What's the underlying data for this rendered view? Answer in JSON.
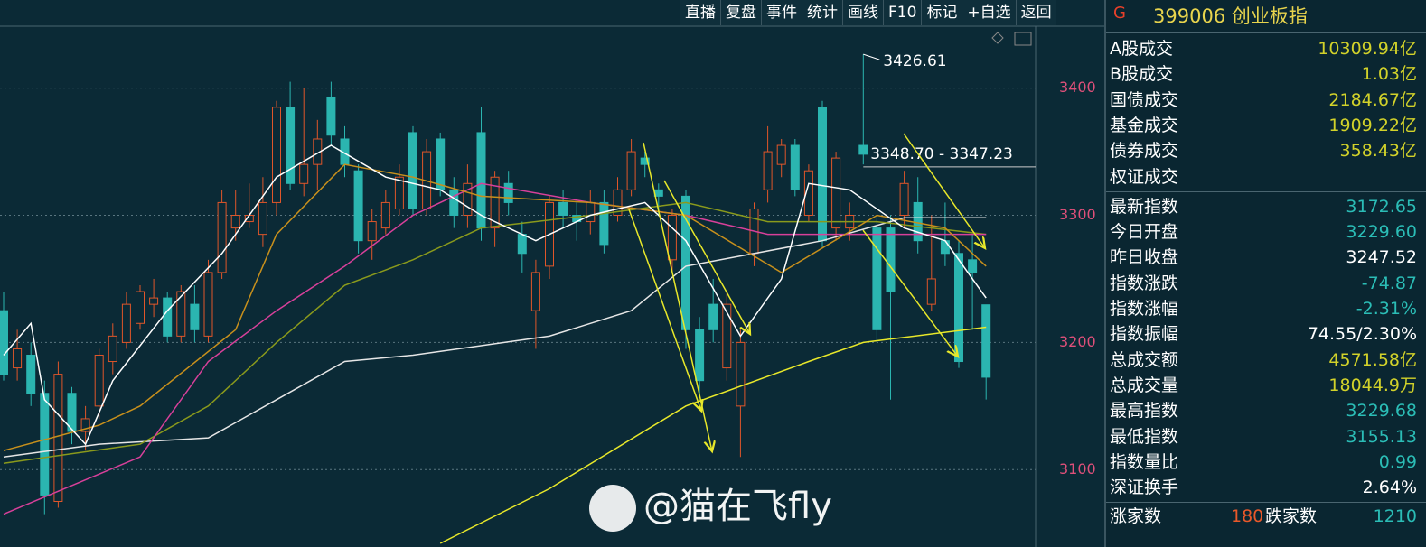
{
  "toolbar": [
    "直播",
    "复盘",
    "事件",
    "统计",
    "画线",
    "F10",
    "标记",
    "+自选",
    "返回"
  ],
  "chart_data": {
    "type": "candlestick",
    "up_color": "#e0562a",
    "down_color": "#2bb5b0",
    "ylim": [
      3042,
      3448
    ],
    "yticks": [
      3100,
      3200,
      3300,
      3400
    ],
    "grid": true,
    "candles": [
      [
        3225,
        3240,
        3170,
        3175
      ],
      [
        3180,
        3210,
        3170,
        3195
      ],
      [
        3190,
        3200,
        3150,
        3160
      ],
      [
        3160,
        3170,
        3065,
        3080
      ],
      [
        3075,
        3185,
        3070,
        3175
      ],
      [
        3160,
        3165,
        3120,
        3130
      ],
      [
        3130,
        3150,
        3115,
        3140
      ],
      [
        3150,
        3195,
        3140,
        3190
      ],
      [
        3185,
        3215,
        3175,
        3205
      ],
      [
        3200,
        3240,
        3195,
        3230
      ],
      [
        3215,
        3245,
        3210,
        3240
      ],
      [
        3230,
        3250,
        3220,
        3235
      ],
      [
        3235,
        3240,
        3200,
        3205
      ],
      [
        3205,
        3245,
        3200,
        3240
      ],
      [
        3230,
        3245,
        3200,
        3210
      ],
      [
        3205,
        3265,
        3200,
        3255
      ],
      [
        3255,
        3320,
        3250,
        3310
      ],
      [
        3290,
        3320,
        3280,
        3300
      ],
      [
        3295,
        3325,
        3290,
        3300
      ],
      [
        3285,
        3330,
        3275,
        3310
      ],
      [
        3310,
        3390,
        3300,
        3385
      ],
      [
        3385,
        3405,
        3320,
        3325
      ],
      [
        3325,
        3400,
        3315,
        3340
      ],
      [
        3340,
        3375,
        3320,
        3360
      ],
      [
        3393,
        3405,
        3355,
        3363
      ],
      [
        3360,
        3370,
        3330,
        3340
      ],
      [
        3335,
        3340,
        3270,
        3280
      ],
      [
        3280,
        3305,
        3265,
        3295
      ],
      [
        3290,
        3320,
        3285,
        3310
      ],
      [
        3305,
        3340,
        3300,
        3330
      ],
      [
        3365,
        3370,
        3300,
        3305
      ],
      [
        3305,
        3360,
        3300,
        3350
      ],
      [
        3360,
        3365,
        3315,
        3320
      ],
      [
        3320,
        3330,
        3290,
        3300
      ],
      [
        3300,
        3340,
        3290,
        3325
      ],
      [
        3365,
        3385,
        3280,
        3290
      ],
      [
        3290,
        3335,
        3275,
        3330
      ],
      [
        3325,
        3335,
        3300,
        3310
      ],
      [
        3285,
        3295,
        3255,
        3270
      ],
      [
        3225,
        3265,
        3195,
        3255
      ],
      [
        3260,
        3315,
        3250,
        3310
      ],
      [
        3310,
        3320,
        3290,
        3300
      ],
      [
        3300,
        3310,
        3280,
        3295
      ],
      [
        3295,
        3320,
        3285,
        3310
      ],
      [
        3310,
        3320,
        3270,
        3277
      ],
      [
        3300,
        3330,
        3295,
        3320
      ],
      [
        3320,
        3360,
        3315,
        3350
      ],
      [
        3345,
        3350,
        3330,
        3340
      ],
      [
        3320,
        3325,
        3300,
        3315
      ],
      [
        3265,
        3305,
        3255,
        3300
      ],
      [
        3315,
        3320,
        3195,
        3210
      ],
      [
        3210,
        3220,
        3160,
        3170
      ],
      [
        3230,
        3250,
        3200,
        3210
      ],
      [
        3180,
        3240,
        3170,
        3230
      ],
      [
        3150,
        3210,
        3110,
        3200
      ],
      [
        3270,
        3310,
        3260,
        3305
      ],
      [
        3320,
        3370,
        3310,
        3350
      ],
      [
        3340,
        3360,
        3330,
        3355
      ],
      [
        3355,
        3360,
        3315,
        3320
      ],
      [
        3300,
        3340,
        3295,
        3335
      ],
      [
        3385,
        3390,
        3275,
        3280
      ],
      [
        3290,
        3350,
        3280,
        3345
      ],
      [
        3290,
        3310,
        3280,
        3300
      ],
      [
        3355,
        3426.61,
        3340,
        3348
      ],
      [
        3290,
        3300,
        3200,
        3210
      ],
      [
        3290,
        3300,
        3155,
        3240
      ],
      [
        3300,
        3335,
        3290,
        3325
      ],
      [
        3310,
        3330,
        3270,
        3280
      ],
      [
        3230,
        3300,
        3225,
        3250
      ],
      [
        3280,
        3310,
        3260,
        3270
      ],
      [
        3270,
        3280,
        3180,
        3185
      ],
      [
        3265,
        3285,
        3210,
        3255
      ],
      [
        3229.6,
        3229.68,
        3155.13,
        3172.65
      ]
    ],
    "lines": [
      {
        "color": "#e8e82a",
        "x": [
          32,
          40,
          50,
          59,
          63,
          72
        ],
        "values": [
          3042,
          3085,
          3150,
          3185,
          3200,
          3212
        ]
      },
      {
        "color": "#e6e6e6",
        "x": [
          0,
          7,
          15,
          20,
          25,
          30,
          40,
          46,
          50,
          60,
          66,
          72
        ],
        "values": [
          3110,
          3120,
          3125,
          3155,
          3185,
          3190,
          3205,
          3225,
          3260,
          3280,
          3298,
          3298
        ]
      },
      {
        "color": "#8a9a1c",
        "x": [
          0,
          10,
          15,
          20,
          25,
          30,
          35,
          43,
          50,
          56,
          64,
          72
        ],
        "values": [
          3105,
          3120,
          3150,
          3200,
          3245,
          3265,
          3290,
          3300,
          3310,
          3295,
          3295,
          3285
        ]
      },
      {
        "color": "#d8409a",
        "x": [
          0,
          10,
          15,
          20,
          25,
          30,
          35,
          43,
          50,
          56,
          66,
          72
        ],
        "values": [
          3065,
          3110,
          3185,
          3225,
          3260,
          3300,
          3325,
          3310,
          3300,
          3285,
          3285,
          3285
        ]
      },
      {
        "color": "#c8901c",
        "x": [
          0,
          7,
          10,
          17,
          20,
          25,
          30,
          35,
          43,
          50,
          57,
          64,
          69,
          72
        ],
        "values": [
          3115,
          3135,
          3150,
          3210,
          3285,
          3340,
          3330,
          3315,
          3310,
          3300,
          3255,
          3300,
          3290,
          3260
        ]
      },
      {
        "color": "#ffffff",
        "x": [
          0,
          2,
          3,
          6,
          8,
          12,
          16,
          20,
          24,
          28,
          32,
          35,
          39,
          43,
          47,
          50,
          54,
          57,
          59,
          62,
          66,
          69,
          72
        ],
        "values": [
          3190,
          3215,
          3155,
          3120,
          3170,
          3225,
          3270,
          3330,
          3355,
          3330,
          3320,
          3300,
          3280,
          3300,
          3310,
          3280,
          3205,
          3250,
          3325,
          3320,
          3290,
          3280,
          3235
        ]
      }
    ],
    "annotations": [
      {
        "label": "3426.61",
        "at": 63
      },
      {
        "label": "3348.70 - 3347.23",
        "value": 3348,
        "at": 63
      }
    ],
    "watermark": "@猫在飞fly"
  },
  "panel": {
    "badge": "G",
    "title": "399006 创业板指",
    "rows": [
      {
        "label": "A股成交",
        "value": "10309.94亿",
        "color": "#d2d22a"
      },
      {
        "label": "B股成交",
        "value": "1.03亿",
        "color": "#d2d22a"
      },
      {
        "label": "国债成交",
        "value": "2184.67亿",
        "color": "#d2d22a"
      },
      {
        "label": "基金成交",
        "value": "1909.22亿",
        "color": "#d2d22a"
      },
      {
        "label": "债券成交",
        "value": "358.43亿",
        "color": "#d2d22a"
      },
      {
        "label": "权证成交"
      },
      {
        "label": "最新指数",
        "value": "3172.65",
        "color": "#2bbdb6"
      },
      {
        "label": "今日开盘",
        "value": "3229.60",
        "color": "#2bbdb6"
      },
      {
        "label": "昨日收盘",
        "value": "3247.52",
        "color": "#ffffff"
      },
      {
        "label": "指数涨跌",
        "value": "-74.87",
        "color": "#2bbdb6"
      },
      {
        "label": "指数涨幅",
        "value": "-2.31%",
        "color": "#2bbdb6"
      },
      {
        "label": "指数振幅",
        "value": "74.55/2.30%",
        "color": "#ffffff"
      },
      {
        "label": "总成交额",
        "value": "4571.58亿",
        "color": "#d2d22a"
      },
      {
        "label": "总成交量",
        "value": "18044.9万",
        "color": "#d2d22a"
      },
      {
        "label": "最高指数",
        "value": "3229.68",
        "color": "#2bbdb6"
      },
      {
        "label": "最低指数",
        "value": "3155.13",
        "color": "#2bbdb6"
      },
      {
        "label": "指数量比",
        "value": "0.99",
        "color": "#2bbdb6"
      },
      {
        "label": "深证换手",
        "value": "2.64%",
        "color": "#ffffff"
      }
    ],
    "breadth": {
      "up_label": "涨家数",
      "up": "180",
      "down_label": "跌家数",
      "down": "1210"
    }
  }
}
